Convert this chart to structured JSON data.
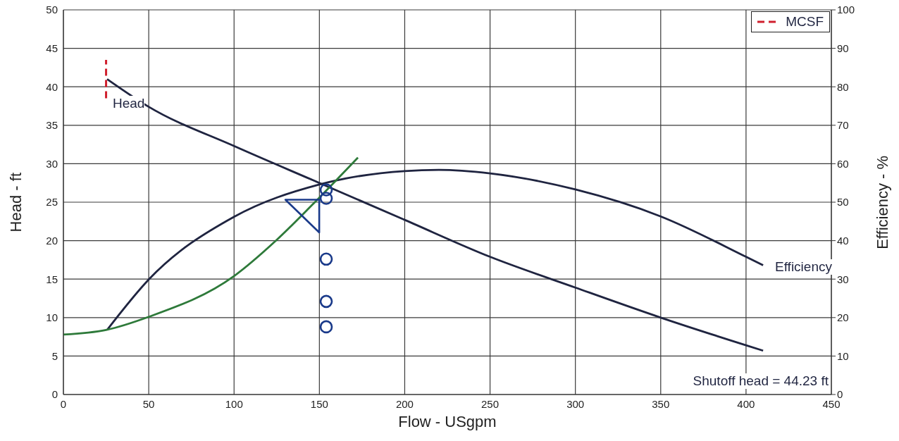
{
  "chart_data": {
    "type": "line",
    "xlabel": "Flow - USgpm",
    "ylabel": "Head - ft",
    "y2label": "Efficiency - %",
    "xlim": [
      0,
      450
    ],
    "xticks": [
      0,
      50,
      100,
      150,
      200,
      250,
      300,
      350,
      400,
      450
    ],
    "ylim": [
      0,
      50
    ],
    "yticks": [
      0,
      5,
      10,
      15,
      20,
      25,
      30,
      35,
      40,
      45,
      50
    ],
    "y2lim": [
      0,
      100
    ],
    "y2ticks": [
      0,
      10,
      20,
      30,
      40,
      50,
      60,
      70,
      80,
      90,
      100
    ],
    "grid": true,
    "legend": "top right",
    "marker": "none",
    "series": [
      {
        "color": "#1f2440",
        "x": [
          25.6,
          50,
          100,
          150,
          200,
          250,
          300,
          350,
          400,
          410
        ],
        "values": [
          41.0,
          37.4,
          32.3,
          27.5,
          22.7,
          17.9,
          13.9,
          10.0,
          6.4,
          5.7
        ]
      },
      {
        "axis": "y2",
        "color": "#1f2440",
        "x": [
          25.6,
          50,
          100,
          150,
          200,
          220,
          250,
          300,
          350,
          400,
          410
        ],
        "values": [
          16.8,
          29.9,
          46.2,
          54.6,
          58.1,
          58.4,
          57.5,
          53.3,
          46.3,
          35.8,
          33.6
        ]
      },
      {
        "color": "#2e7a3a",
        "x": [
          0,
          25,
          50,
          100,
          125,
          150,
          172.6
        ],
        "values": [
          7.8,
          8.4,
          10.1,
          15.4,
          20.1,
          25.6,
          30.8
        ]
      },
      {
        "name": "MCSF",
        "color": "#d0202e",
        "line_style": "dashed",
        "x": [
          25,
          25
        ],
        "values": [
          38.5,
          43.5
        ]
      },
      {
        "type": "scatter",
        "marker": "circle",
        "color": "#1a3a8a",
        "x": [
          154,
          154,
          154,
          154,
          154
        ],
        "values": [
          26.6,
          25.5,
          17.6,
          12.1,
          8.8
        ]
      },
      {
        "type": "scatter",
        "marker": "triangle",
        "color": "#1a3a8a",
        "x": [
          143.3
        ],
        "values": [
          23.9
        ]
      }
    ],
    "annotations": [
      "Head",
      "Efficiency",
      "Shutoff head = 44.23 ft"
    ]
  }
}
